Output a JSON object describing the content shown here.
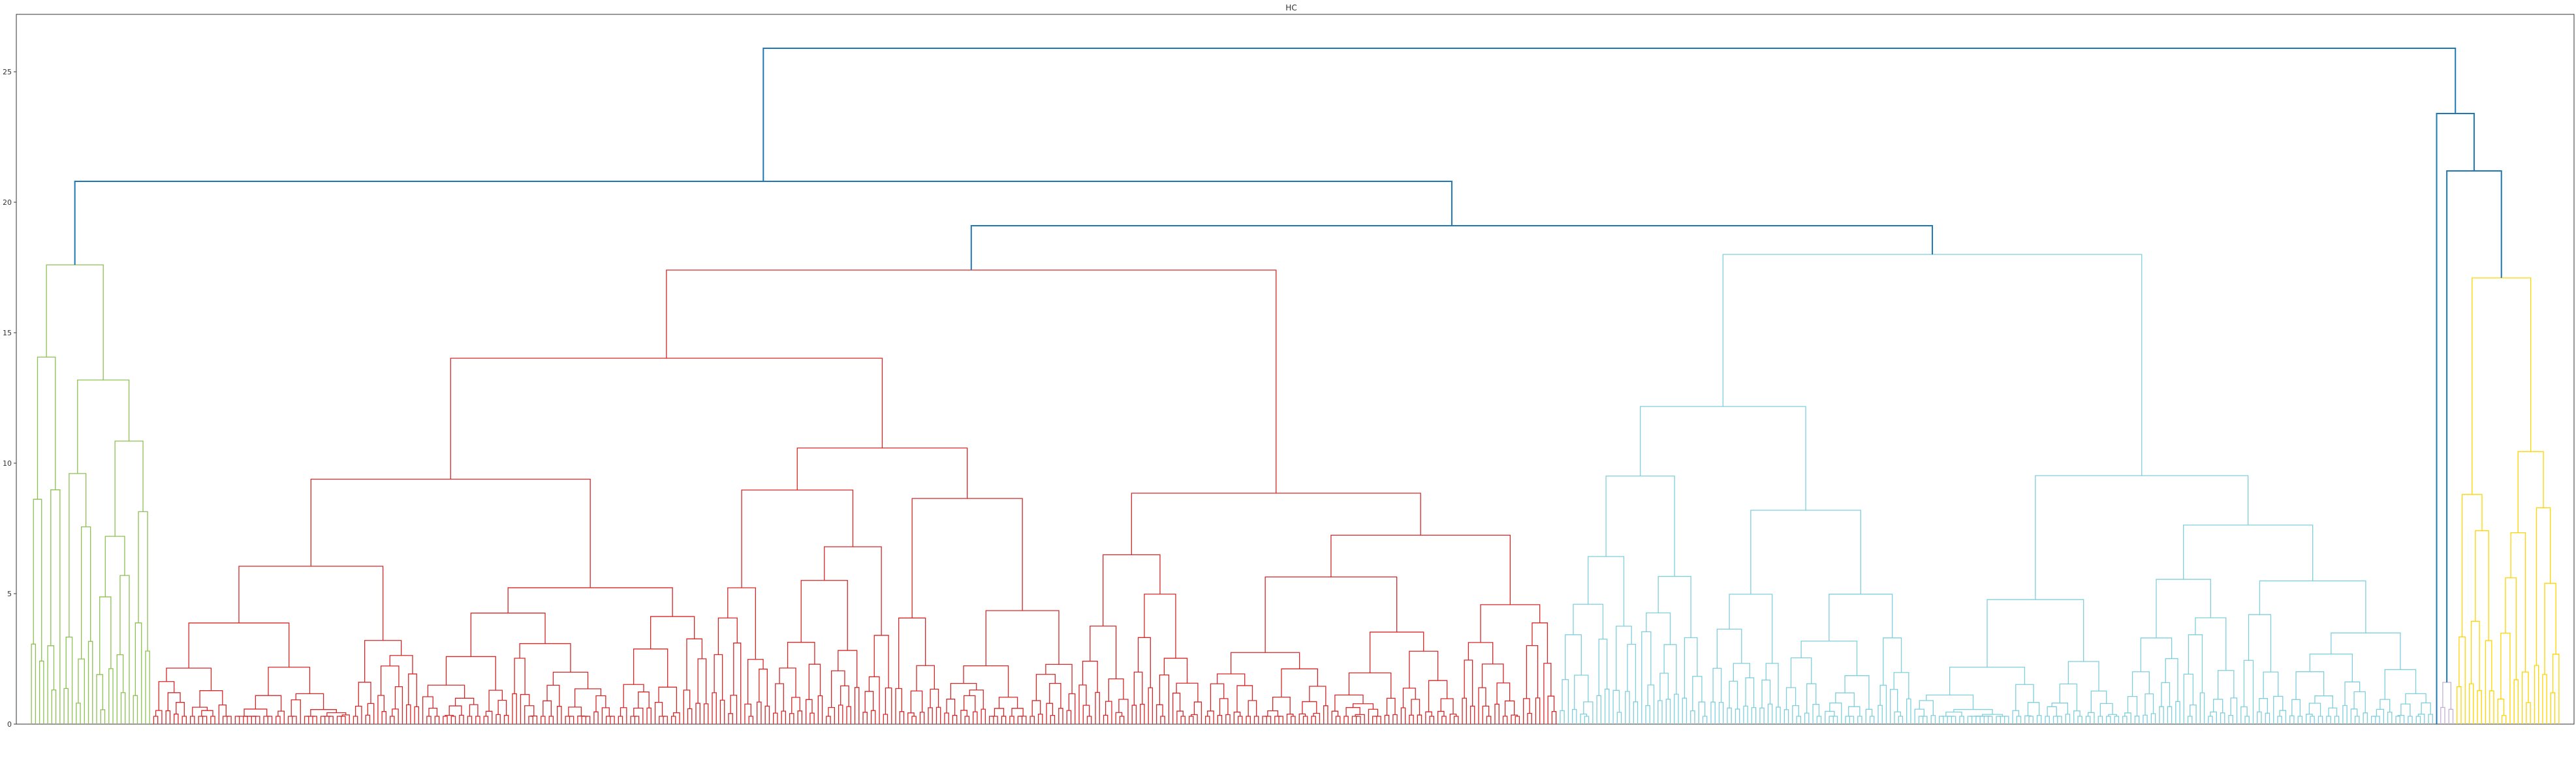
{
  "chart_data": {
    "type": "dendrogram",
    "title": "HC",
    "xlabel": "",
    "ylabel": "",
    "ylim": [
      0,
      27.2
    ],
    "yticks": [
      0,
      5,
      10,
      15,
      20,
      25
    ],
    "grid": false,
    "legend": "none",
    "leaf_count": 620,
    "colors": {
      "above_threshold": "#1f77b4",
      "c1": "#8cc152",
      "c2": "#d62728",
      "c3": "#7fcfdc",
      "c4": "#c5b0d5",
      "c5": "#ffd400"
    },
    "top_merges": [
      {
        "name": "root",
        "height": 25.9
      },
      {
        "name": "left_branch",
        "height": 20.8
      },
      {
        "name": "center_branch",
        "height": 19.1
      },
      {
        "name": "right_branch",
        "height": 23.4
      },
      {
        "name": "right_sub_branch",
        "height": 21.2
      }
    ],
    "clusters": [
      {
        "name": "c1",
        "leaves": 30,
        "height": 17.6,
        "color": "#8cc152"
      },
      {
        "name": "c2",
        "leaves": 345,
        "height": 17.4,
        "color": "#d62728"
      },
      {
        "name": "c3",
        "leaves": 215,
        "height": 18.0,
        "color": "#7fcfdc"
      },
      {
        "name": "c4",
        "leaves": 4,
        "height": 1.6,
        "color": "#c5b0d5"
      },
      {
        "name": "c5",
        "leaves": 26,
        "height": 17.1,
        "color": "#ffd400"
      }
    ]
  }
}
